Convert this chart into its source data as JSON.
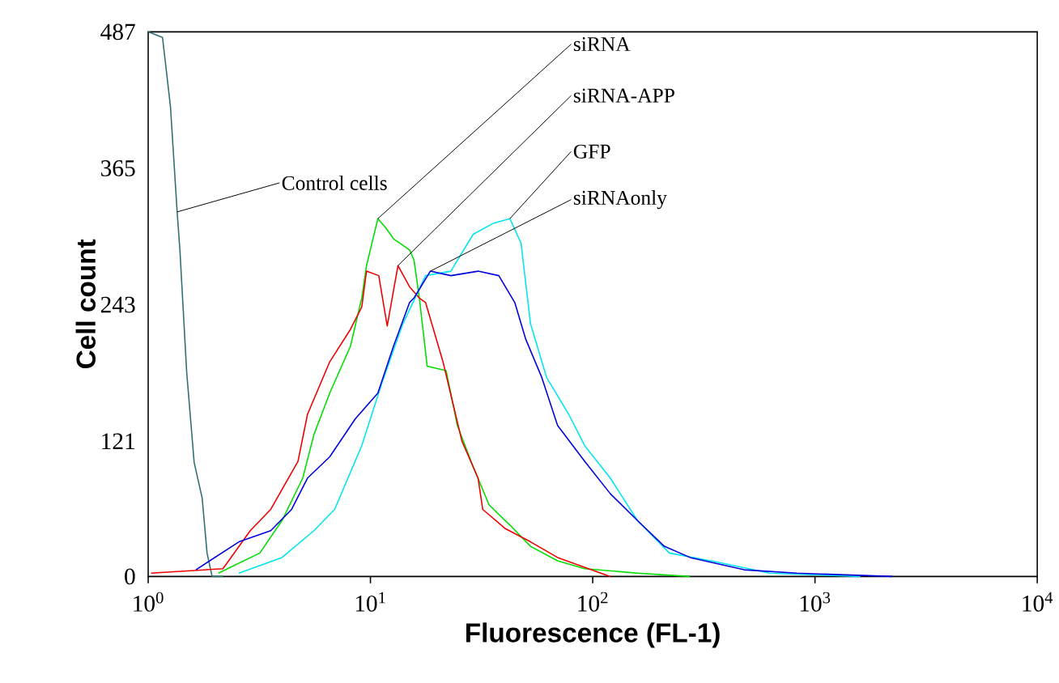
{
  "chart_data": {
    "type": "line",
    "xlabel": "Fluorescence (FL-1)",
    "ylabel": "Cell count",
    "log": "x",
    "xlim": [
      1,
      10000
    ],
    "xticks": [
      {
        "value": 1,
        "label": "10$^{0}$"
      },
      {
        "value": 10,
        "label": "10$^{1}$"
      },
      {
        "value": 100,
        "label": "10$^{2}$"
      },
      {
        "value": 1000,
        "label": "10$^{3}$"
      },
      {
        "value": 10000,
        "label": "10$^{4}$"
      }
    ],
    "ylim": [
      0,
      487
    ],
    "yticks": [
      0,
      121,
      243,
      365,
      487
    ],
    "legend": false,
    "grid": false,
    "marker": "none",
    "line_style": "solid",
    "series": [
      {
        "name": "Control cells",
        "color": "#2f6f6f",
        "x": [
          1.0,
          1.16,
          1.26,
          1.35,
          1.39,
          1.49,
          1.61,
          1.75,
          1.84,
          1.94,
          2.17
        ],
        "values": [
          487,
          482,
          420,
          326,
          291,
          183,
          102,
          70,
          21,
          0,
          0
        ]
      },
      {
        "name": "siRNA",
        "color": "#00dd00",
        "x": [
          2.07,
          3.18,
          4.0,
          4.96,
          5.57,
          6.56,
          8.13,
          9.14,
          9.6,
          10.8,
          11.7,
          12.7,
          15.0,
          15.7,
          16.6,
          18.0,
          21.9,
          24.6,
          29.0,
          34.2,
          42.4,
          52.5,
          69.5,
          92.0,
          159,
          274
        ],
        "values": [
          3,
          21,
          50,
          88,
          127,
          164,
          206,
          249,
          278,
          320,
          312,
          302,
          292,
          283,
          249,
          188,
          184,
          135,
          98,
          64,
          46,
          27,
          14,
          7,
          3,
          0
        ]
      },
      {
        "name": "siRNA-APP",
        "color": "#ee0000",
        "x": [
          1.03,
          2.17,
          2.88,
          3.56,
          4.72,
          5.21,
          6.56,
          8.13,
          9.14,
          9.6,
          10.9,
          11.9,
          13.3,
          15.0,
          16.6,
          17.7,
          21.2,
          25.8,
          30.5,
          32.0,
          40.3,
          52.5,
          69.5,
          120
        ],
        "values": [
          3,
          7,
          41,
          60,
          103,
          145,
          192,
          221,
          241,
          273,
          269,
          224,
          278,
          259,
          249,
          245,
          192,
          121,
          88,
          60,
          43,
          31,
          17,
          0
        ]
      },
      {
        "name": "GFP",
        "color": "#00e5ee",
        "x": [
          2.56,
          4.0,
          5.57,
          6.9,
          9.14,
          11.3,
          14.0,
          17.7,
          23.0,
          29.0,
          35.9,
          42.4,
          47.6,
          52.5,
          62.0,
          78.0,
          92.0,
          120,
          159,
          221,
          362,
          625,
          1600
        ],
        "values": [
          3,
          17,
          41,
          60,
          117,
          174,
          226,
          269,
          273,
          306,
          316,
          320,
          298,
          226,
          178,
          145,
          117,
          88,
          50,
          21,
          13,
          3,
          0
        ]
      },
      {
        "name": "siRNAonly",
        "color": "#0000dd",
        "x": [
          1.64,
          2.56,
          3.56,
          4.42,
          5.21,
          6.56,
          8.55,
          10.8,
          12.7,
          15.0,
          15.7,
          18.6,
          23.0,
          30.5,
          37.8,
          44.6,
          50.0,
          59.0,
          69.5,
          92.0,
          120,
          159,
          210,
          274,
          480,
          828,
          2230
        ],
        "values": [
          6,
          31,
          41,
          60,
          88,
          107,
          141,
          164,
          206,
          245,
          249,
          273,
          269,
          273,
          269,
          245,
          212,
          178,
          135,
          103,
          74,
          50,
          27,
          17,
          6,
          3,
          0
        ]
      }
    ]
  }
}
